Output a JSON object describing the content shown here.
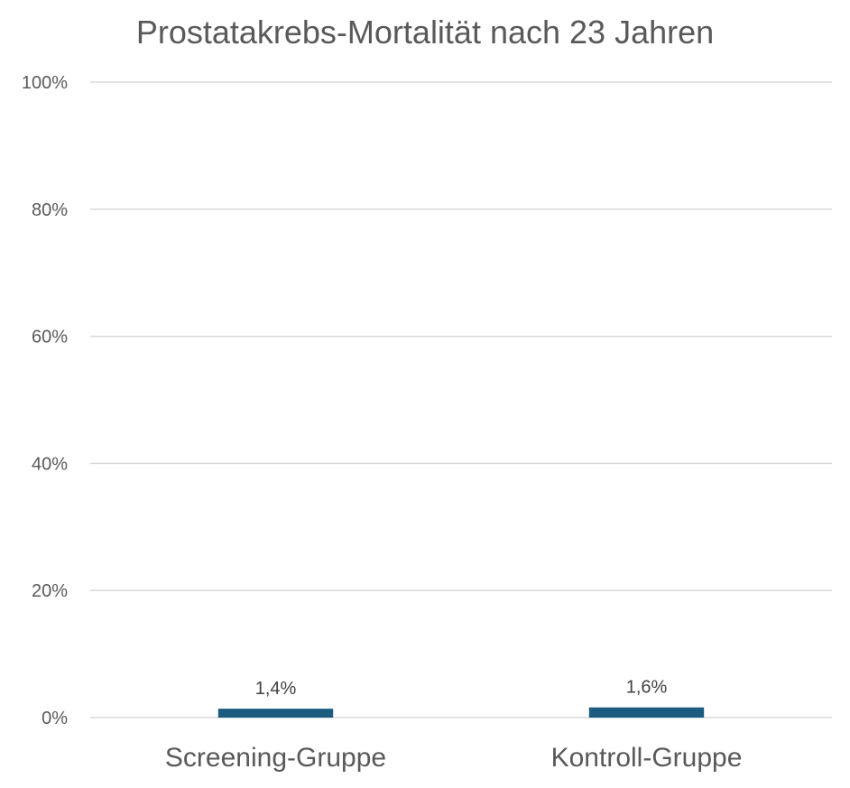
{
  "chart_data": {
    "type": "bar",
    "title": "Prostatakrebs-Mortalität nach 23 Jahren",
    "categories": [
      "Screening-Gruppe",
      "Kontroll-Gruppe"
    ],
    "values": [
      1.4,
      1.6
    ],
    "data_labels": [
      "1,4%",
      "1,6%"
    ],
    "ylim": [
      0,
      100
    ],
    "yticks": [
      0,
      20,
      40,
      60,
      80,
      100
    ],
    "ytick_labels": [
      "0%",
      "20%",
      "40%",
      "60%",
      "80%",
      "100%"
    ],
    "grid": true,
    "legend": "none",
    "bar_color": "#1b5c7f",
    "xlabel": "",
    "ylabel": ""
  }
}
